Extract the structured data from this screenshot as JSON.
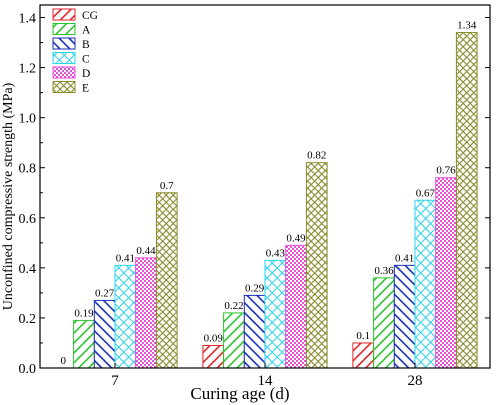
{
  "chart_data": {
    "type": "bar",
    "xlabel": "Curing age (d)",
    "ylabel": "Unconfined compressive strength (MPa)",
    "categories": [
      "7",
      "14",
      "28"
    ],
    "ylim": [
      0,
      1.45
    ],
    "yticks": [
      0.0,
      0.2,
      0.4,
      0.6,
      0.8,
      1.0,
      1.2,
      1.4
    ],
    "ytick_labels": [
      "0.0",
      "0.2",
      "0.4",
      "0.6",
      "0.8",
      "1.0",
      "1.2",
      "1.4"
    ],
    "legend_position": "top-left",
    "series": [
      {
        "name": "CG",
        "values": [
          0,
          0.09,
          0.1
        ],
        "labels": [
          "0",
          "0.09",
          "0.1"
        ],
        "color": "#e0262b",
        "pattern": "diag-right"
      },
      {
        "name": "A",
        "values": [
          0.19,
          0.22,
          0.36
        ],
        "labels": [
          "0.19",
          "0.22",
          "0.36"
        ],
        "color": "#2ec42e",
        "pattern": "diag-right"
      },
      {
        "name": "B",
        "values": [
          0.27,
          0.29,
          0.41
        ],
        "labels": [
          "0.27",
          "0.29",
          "0.41"
        ],
        "color": "#1c2fb8",
        "pattern": "diag-left"
      },
      {
        "name": "C",
        "values": [
          0.41,
          0.43,
          0.67
        ],
        "labels": [
          "0.41",
          "0.43",
          "0.67"
        ],
        "color": "#27d4e8",
        "pattern": "cross"
      },
      {
        "name": "D",
        "values": [
          0.44,
          0.49,
          0.76
        ],
        "labels": [
          "0.44",
          "0.49",
          "0.76"
        ],
        "color": "#e84fdc",
        "pattern": "dots"
      },
      {
        "name": "E",
        "values": [
          0.7,
          0.82,
          1.34
        ],
        "labels": [
          "0.7",
          "0.82",
          "1.34"
        ],
        "color": "#8a8a2e",
        "pattern": "cross-dense"
      }
    ]
  }
}
